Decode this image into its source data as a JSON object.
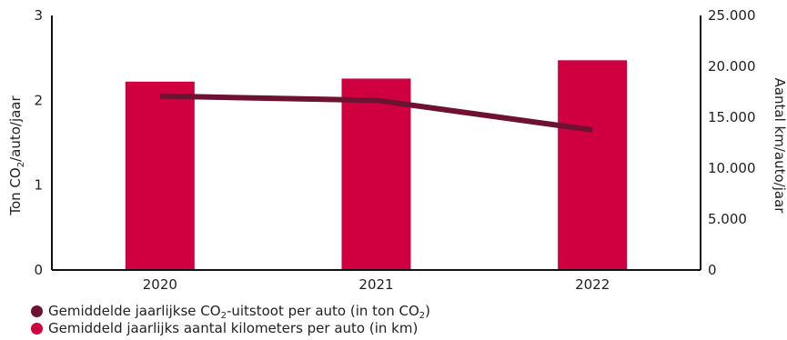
{
  "colors": {
    "line": "#6e1233",
    "bar": "#d00040",
    "axis": "#111111"
  },
  "chart_data": {
    "type": "bar+line",
    "categories": [
      "2020",
      "2021",
      "2022"
    ],
    "series": [
      {
        "name": "Gemiddeld jaarlijks aantal kilometers per auto (in km)",
        "type": "bar",
        "axis": "right",
        "values": [
          18500,
          18800,
          20600
        ]
      },
      {
        "name": "Gemiddelde jaarlijkse CO2-uitstoot per auto (in ton CO2)",
        "type": "line",
        "axis": "left",
        "values": [
          2.05,
          2.0,
          1.65
        ]
      }
    ],
    "y_left": {
      "label": "Ton CO2/auto/jaar",
      "ylim": [
        0,
        3
      ],
      "ticks": [
        "0",
        "1",
        "2",
        "3"
      ]
    },
    "y_right": {
      "label": "Aantal km/auto/jaar",
      "ylim": [
        0,
        25000
      ],
      "ticks": [
        "0",
        "5.000",
        "10.000",
        "15.000",
        "20.000",
        "25.000"
      ]
    },
    "legend_placement": "bottom-left",
    "grid": false
  },
  "legend": {
    "line": {
      "prefix": "Gemiddelde jaarlijkse CO",
      "sub1": "2",
      "mid": "-uitstoot per auto (in ton CO",
      "sub2": "2",
      "suffix": ")"
    },
    "bar": {
      "label": "Gemiddeld jaarlijks aantal kilometers per auto (in km)"
    }
  },
  "left_axis_title": {
    "prefix": "Ton CO",
    "sub": "2",
    "suffix": "/auto/jaar"
  },
  "right_axis_title": {
    "label": "Aantal km/auto/jaar"
  }
}
